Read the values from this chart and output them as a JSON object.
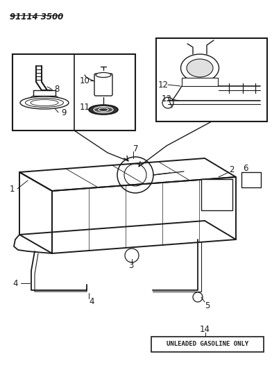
{
  "title": "91114 3500",
  "background_color": "#ffffff",
  "line_color": "#1a1a1a",
  "fig_width": 3.92,
  "fig_height": 5.33,
  "dpi": 100,
  "unleaded_text": "UNLEADED GASOLINE ONLY"
}
